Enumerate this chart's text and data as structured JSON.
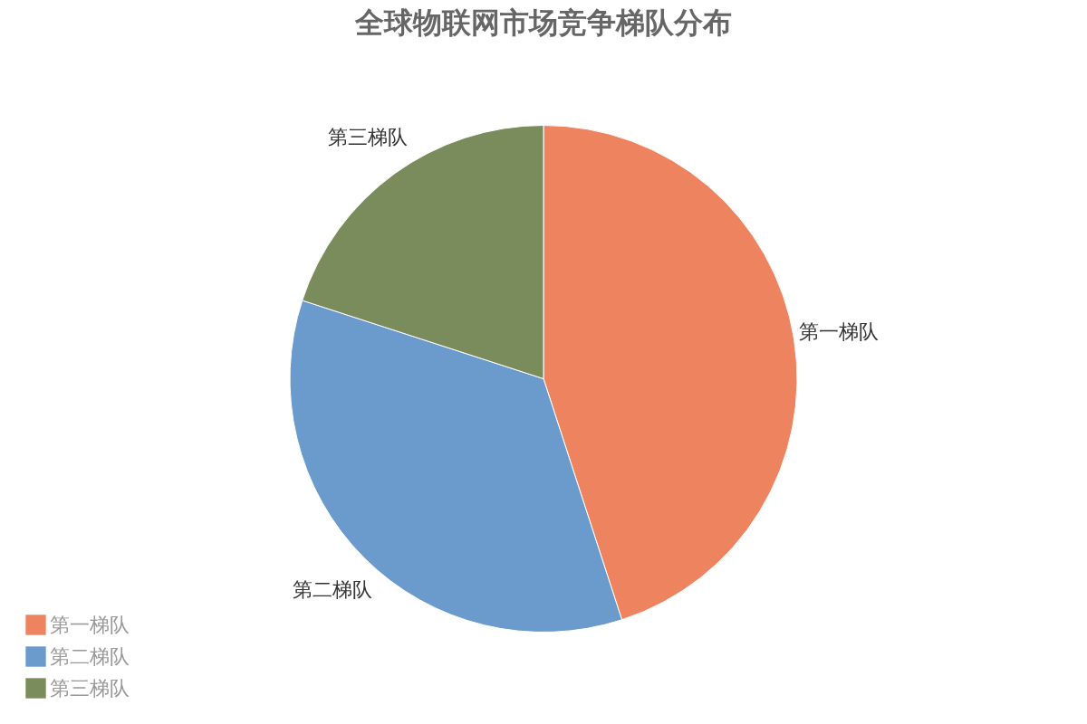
{
  "chart_data": {
    "type": "pie",
    "title": "全球物联网市场竞争梯队分布",
    "categories": [
      "第一梯队",
      "第二梯队",
      "第三梯队"
    ],
    "values": [
      45,
      35,
      20
    ],
    "colors": [
      "#ee8360",
      "#6a9bcc",
      "#7a8b5c"
    ],
    "legend": "bottom left"
  }
}
